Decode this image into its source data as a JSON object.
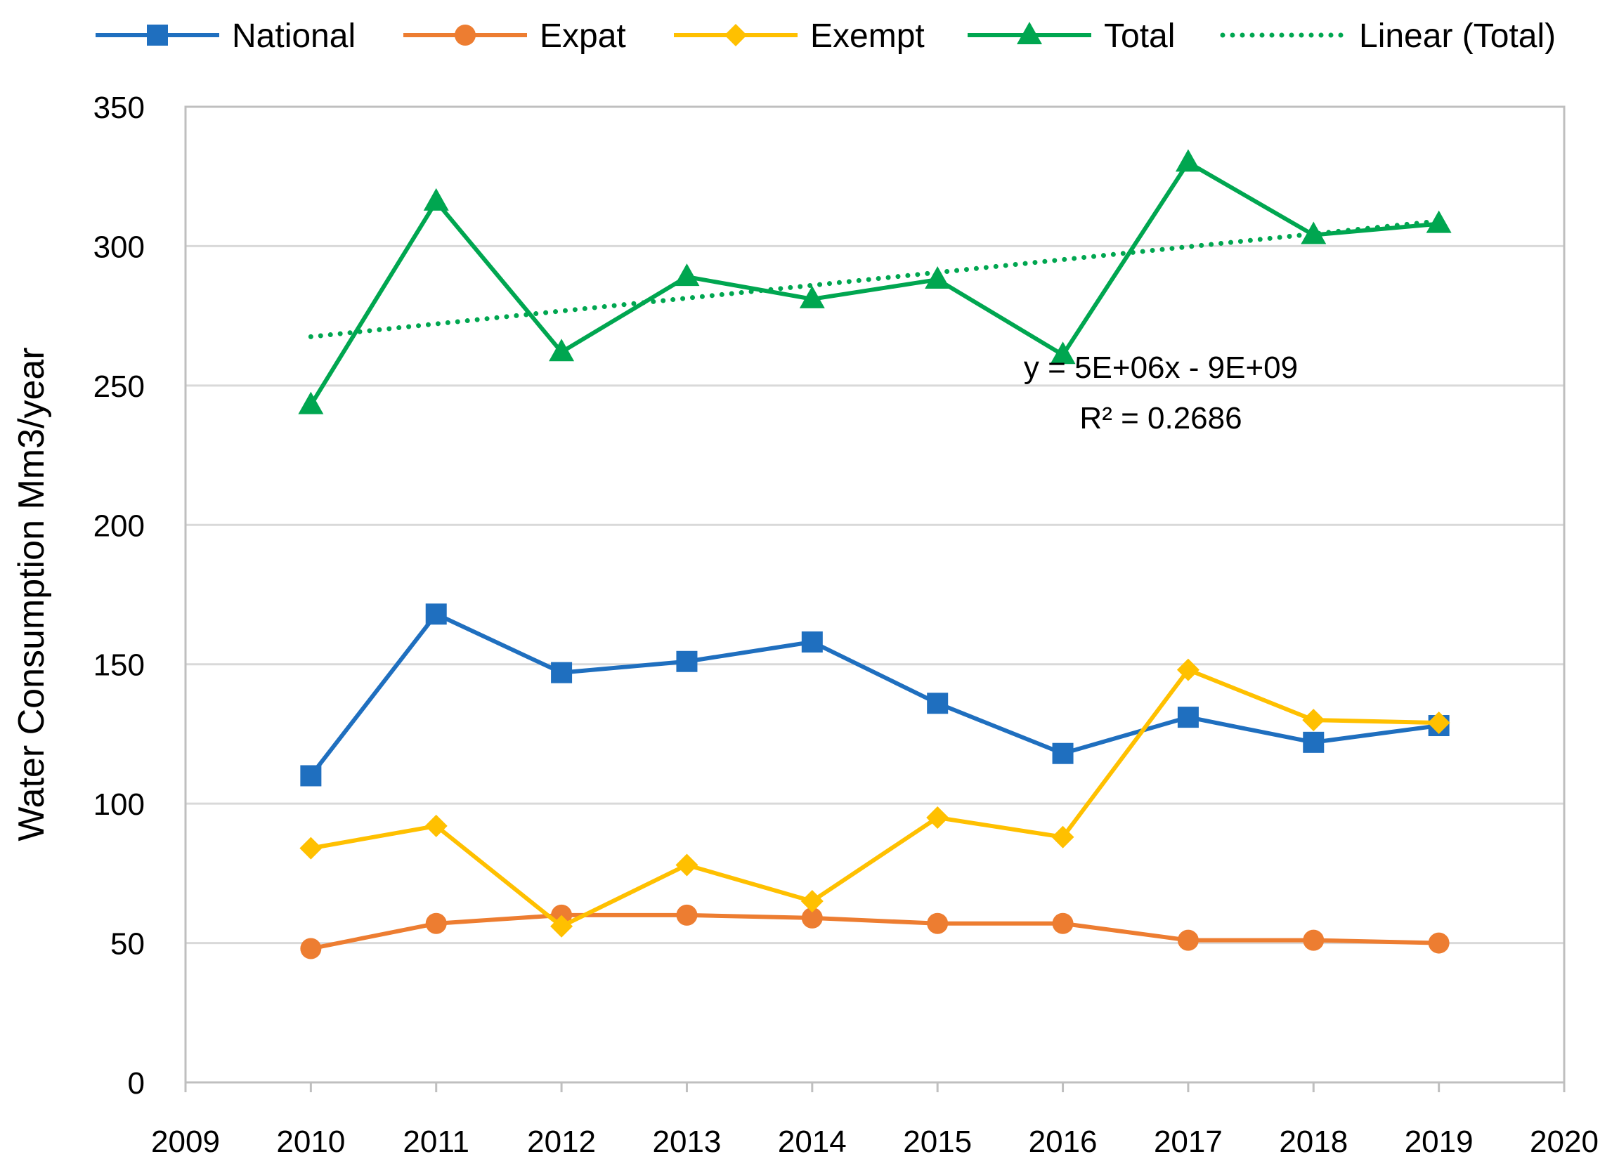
{
  "chart_data": {
    "type": "line",
    "title": "",
    "xlabel": "",
    "ylabel": "Water Consumption Mm3/year",
    "xlim": [
      2009,
      2020
    ],
    "ylim": [
      0,
      350
    ],
    "grid": true,
    "legend_position": "top",
    "x": [
      2010,
      2011,
      2012,
      2013,
      2014,
      2015,
      2016,
      2017,
      2018,
      2019
    ],
    "x_ticks": [
      "2009",
      "2010",
      "2011",
      "2012",
      "2013",
      "2014",
      "2015",
      "2016",
      "2017",
      "2018",
      "2019",
      "2020"
    ],
    "y_ticks": [
      "0",
      "50",
      "100",
      "150",
      "200",
      "250",
      "300",
      "350"
    ],
    "series": [
      {
        "name": "National",
        "color": "#1f6fbf",
        "marker": "square",
        "values": [
          110,
          168,
          147,
          151,
          158,
          136,
          118,
          131,
          122,
          128
        ]
      },
      {
        "name": "Expat",
        "color": "#ed7d31",
        "marker": "circle",
        "values": [
          48,
          57,
          60,
          60,
          59,
          57,
          57,
          51,
          51,
          50
        ]
      },
      {
        "name": "Exempt",
        "color": "#ffc000",
        "marker": "diamond",
        "values": [
          84,
          92,
          56,
          78,
          65,
          95,
          88,
          148,
          130,
          129
        ]
      },
      {
        "name": "Total",
        "color": "#00a650",
        "marker": "triangle",
        "values": [
          243,
          316,
          262,
          289,
          281,
          288,
          261,
          330,
          304,
          308
        ]
      }
    ],
    "trendline": {
      "name": "Linear (Total)",
      "color": "#00a650",
      "style": "dotted",
      "of_series": "Total",
      "x_range": [
        2010,
        2019
      ],
      "y_range": [
        267.5,
        309
      ],
      "equation": "y = 5E+06x - 9E+09",
      "r_squared": "R² = 0.2686"
    }
  }
}
